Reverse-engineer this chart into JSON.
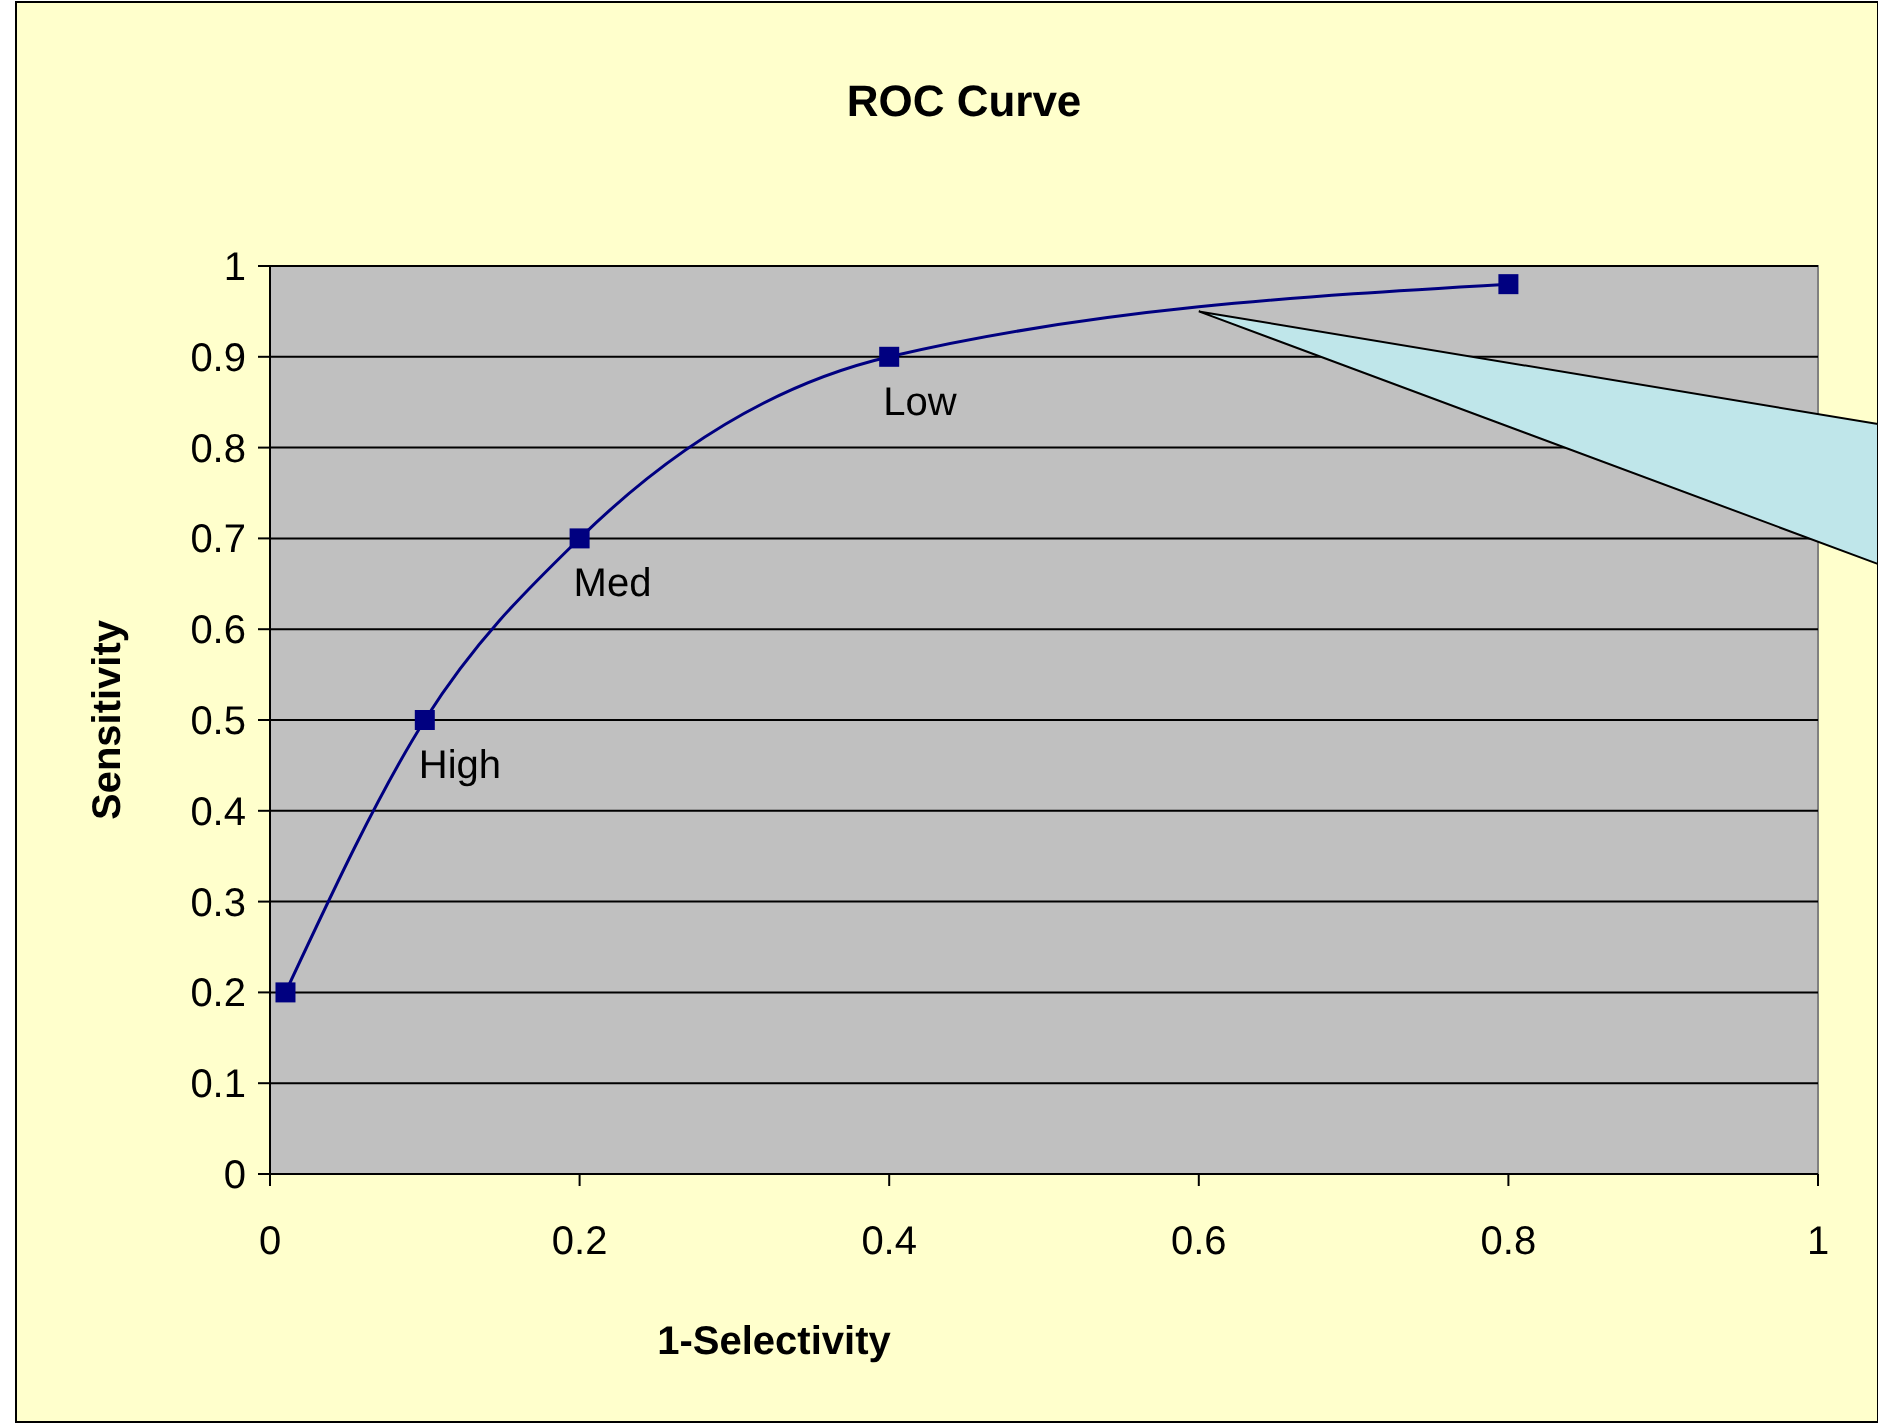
{
  "chart_data": {
    "type": "line",
    "title": "ROC Curve",
    "xlabel": "1-Selectivity",
    "ylabel": "Sensitivity",
    "x": [
      0.01,
      0.1,
      0.2,
      0.4,
      0.8
    ],
    "series": [
      {
        "color": "#000080",
        "values": [
          0.2,
          0.5,
          0.7,
          0.9,
          0.98
        ]
      }
    ],
    "xlim": [
      0,
      1
    ],
    "xticks": [
      0,
      0.2,
      0.4,
      0.6,
      0.8,
      1
    ],
    "ylim": [
      0,
      1
    ],
    "yticks": [
      0,
      0.1,
      0.2,
      0.3,
      0.4,
      0.5,
      0.6,
      0.7,
      0.8,
      0.9,
      1
    ],
    "grid": "y",
    "marker": "square",
    "line_style": "solid",
    "annotations": [
      {
        "text": "High",
        "x": 0.1,
        "y": 0.5
      },
      {
        "text": "Med",
        "x": 0.2,
        "y": 0.7
      },
      {
        "text": "Low",
        "x": 0.4,
        "y": 0.9
      }
    ]
  }
}
